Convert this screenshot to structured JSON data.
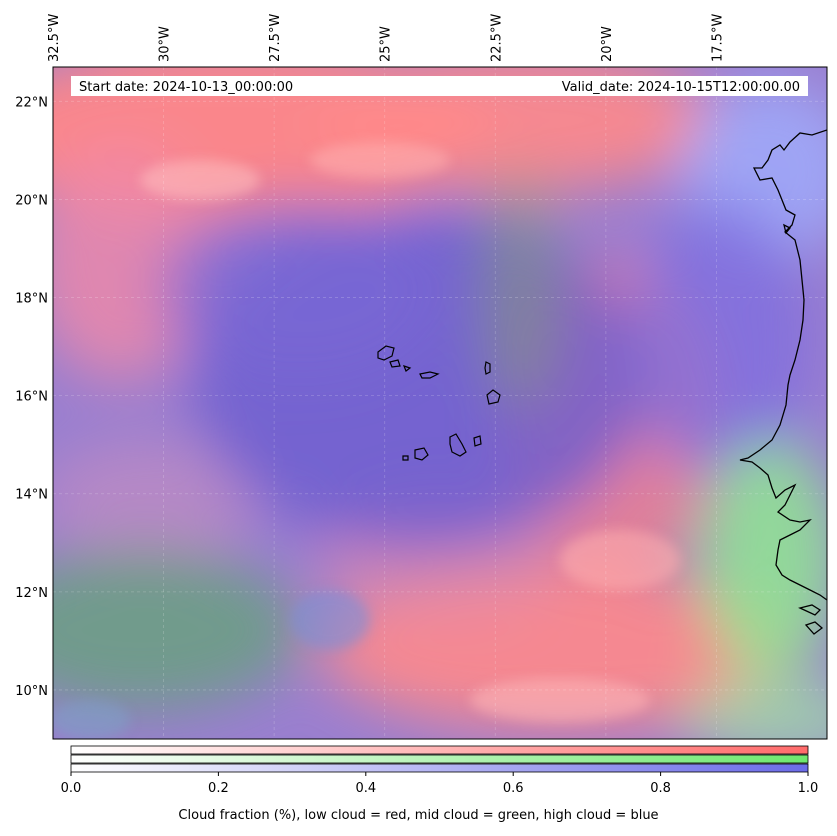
{
  "map": {
    "start_date_label": "Start date: 2024-10-13_00:00:00",
    "valid_date_label": "Valid_date: 2024-10-15T12:00:00.00",
    "lon_ticks": [
      {
        "lon": -32.5,
        "label": "32.5°W"
      },
      {
        "lon": -30.0,
        "label": "30°W"
      },
      {
        "lon": -27.5,
        "label": "27.5°W"
      },
      {
        "lon": -25.0,
        "label": "25°W"
      },
      {
        "lon": -22.5,
        "label": "22.5°W"
      },
      {
        "lon": -20.0,
        "label": "20°W"
      },
      {
        "lon": -17.5,
        "label": "17.5°W"
      }
    ],
    "lat_ticks": [
      {
        "lat": 22,
        "label": "22°N"
      },
      {
        "lat": 20,
        "label": "20°N"
      },
      {
        "lat": 18,
        "label": "18°N"
      },
      {
        "lat": 16,
        "label": "16°N"
      },
      {
        "lat": 14,
        "label": "14°N"
      },
      {
        "lat": 12,
        "label": "12°N"
      },
      {
        "lat": 10,
        "label": "10°N"
      }
    ],
    "extent": {
      "lon_min": -32.5,
      "lon_max": -15.0,
      "lat_min": 9.0,
      "lat_max": 22.7
    }
  },
  "colorbar": {
    "ticks": [
      "0.0",
      "0.2",
      "0.4",
      "0.6",
      "0.8",
      "1.0"
    ],
    "min": 0.0,
    "max": 1.0,
    "label": "Cloud fraction (%), low cloud = red, mid cloud = green, high cloud = blue",
    "colors": {
      "low": "#ff6b6b",
      "mid": "#6ee86e",
      "high": "#6b6be8"
    }
  }
}
